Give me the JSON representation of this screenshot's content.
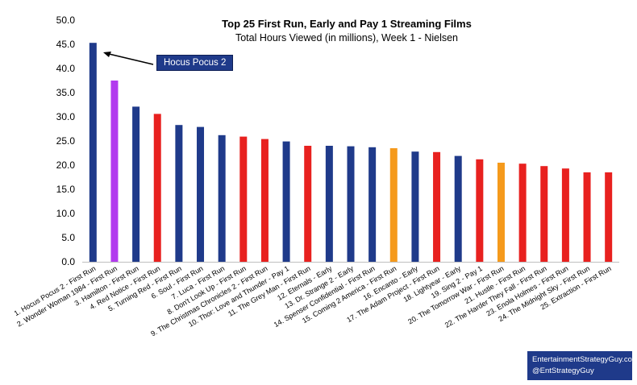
{
  "chart_data": {
    "type": "bar",
    "title": "Top 25 First Run, Early and Pay 1 Streaming Films",
    "subtitle": "Total Hours Viewed (in millions), Week 1 - Nielsen",
    "ylim": [
      0,
      50
    ],
    "yticks": [
      "0.0",
      "5.0",
      "10.0",
      "15.0",
      "20.0",
      "25.0",
      "30.0",
      "35.0",
      "40.0",
      "45.0",
      "50.0"
    ],
    "grid": false,
    "categories": [
      "1. Hocus Pocus 2 - First Run",
      "2. Wonder Woman 1984 - First Run",
      "3. Hamilton - First Run",
      "4. Red Notice - First Run",
      "5. Turning Red - First Run",
      "6. Soul - First Run",
      "7. Luca - First Run",
      "8. Don't Look Up - First Run",
      "9. The Christmas Chronicles 2 - First Run",
      "10. Thor: Love and Thunder - Pay 1",
      "11. The Grey Man - First Run",
      "12. Eternals - Early",
      "13. Dr. Strange 2 - Early",
      "14. Spenser Confidential - First Run",
      "15. Coming 2 America - First Run",
      "16. Encanto - Early",
      "17. The Adam Project - First Run",
      "18. Lightyear - Early",
      "19. Sing 2 - Pay 1",
      "20. The Tomorrow War - First Run",
      "21. Hustle - First Run",
      "22. The Harder They Fall - First Run",
      "23. Enola Holmes - First Run",
      "24. The Midnight Sky - First Run",
      "25. Extraction - First Run"
    ],
    "values": [
      45.3,
      37.5,
      32.1,
      30.6,
      28.3,
      27.9,
      26.2,
      25.9,
      25.4,
      24.9,
      24.0,
      24.0,
      23.9,
      23.7,
      23.5,
      22.8,
      22.7,
      21.9,
      21.2,
      20.5,
      20.3,
      19.8,
      19.3,
      18.5,
      18.5
    ],
    "colors": [
      "#1f3a8a",
      "#b23aee",
      "#1f3a8a",
      "#e8211f",
      "#1f3a8a",
      "#1f3a8a",
      "#1f3a8a",
      "#e8211f",
      "#e8211f",
      "#1f3a8a",
      "#e8211f",
      "#1f3a8a",
      "#1f3a8a",
      "#1f3a8a",
      "#f59a1c",
      "#1f3a8a",
      "#e8211f",
      "#1f3a8a",
      "#e8211f",
      "#f59a1c",
      "#e8211f",
      "#e8211f",
      "#e8211f",
      "#e8211f",
      "#e8211f"
    ],
    "annotation": "Hocus Pocus 2"
  },
  "credit": {
    "site": "EntertainmentStrategyGuy.com",
    "handle": "@EntStrategyGuy"
  }
}
